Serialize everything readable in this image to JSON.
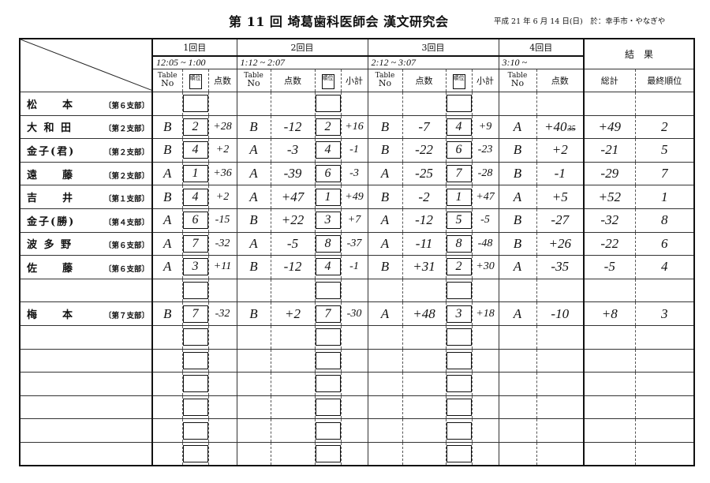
{
  "document": {
    "title": "第 11 回 埼葛歯科医師会 漢文研究会",
    "date_place": "平成 21 年 6 月 14 日(日)　於：幸手市・やなぎや"
  },
  "header": {
    "rounds": [
      "1回目",
      "2回目",
      "3回目",
      "4回目"
    ],
    "times": [
      "12:05 ~ 1:00",
      "1:12  ~  2:07",
      "2:12    ~ 3:07",
      "3:10 ~"
    ],
    "result": "結　果",
    "table_no": [
      "Table",
      "No"
    ],
    "rank_label": "順位",
    "score_label": "点数",
    "subtotal_label": "小計",
    "total_label": "総計",
    "final_rank_label": "最終順位"
  },
  "rows": [
    {
      "name": "松　　本",
      "branch": "〔第６支部〕",
      "r1": [
        "",
        "",
        ""
      ],
      "r2": [
        "",
        "",
        "",
        ""
      ],
      "r3": [
        "",
        "",
        "",
        ""
      ],
      "r4": [
        "",
        ""
      ],
      "total": "",
      "final": ""
    },
    {
      "name": "大 和 田",
      "branch": "〔第２支部〕",
      "r1": [
        "B",
        "2",
        "+28"
      ],
      "r2": [
        "B",
        "-12",
        "2",
        "+16"
      ],
      "r3": [
        "B",
        "-7",
        "4",
        "+9"
      ],
      "r4": [
        "A",
        "+40"
      ],
      "r4_struck": "35",
      "total": "+49",
      "final": "2"
    },
    {
      "name": "金子(君)",
      "branch": "〔第２支部〕",
      "r1": [
        "B",
        "4",
        "+2"
      ],
      "r2": [
        "A",
        "-3",
        "4",
        "-1"
      ],
      "r3": [
        "B",
        "-22",
        "6",
        "-23"
      ],
      "r4": [
        "B",
        "+2"
      ],
      "total": "-21",
      "final": "5"
    },
    {
      "name": "遠　　藤",
      "branch": "〔第２支部〕",
      "r1": [
        "A",
        "1",
        "+36"
      ],
      "r2": [
        "A",
        "-39",
        "6",
        "-3"
      ],
      "r3": [
        "A",
        "-25",
        "7",
        "-28"
      ],
      "r4": [
        "B",
        "-1"
      ],
      "total": "-29",
      "final": "7"
    },
    {
      "name": "吉　　井",
      "branch": "〔第１支部〕",
      "r1": [
        "B",
        "4",
        "+2"
      ],
      "r2": [
        "A",
        "+47",
        "1",
        "+49"
      ],
      "r3": [
        "B",
        "-2",
        "1",
        "+47"
      ],
      "r4": [
        "A",
        "+5"
      ],
      "total": "+52",
      "final": "1"
    },
    {
      "name": "金子(勝)",
      "branch": "〔第４支部〕",
      "r1": [
        "A",
        "6",
        "-15"
      ],
      "r2": [
        "B",
        "+22",
        "3",
        "+7"
      ],
      "r3": [
        "A",
        "-12",
        "5",
        "-5"
      ],
      "r4": [
        "B",
        "-27"
      ],
      "total": "-32",
      "final": "8"
    },
    {
      "name": "波 多 野",
      "branch": "〔第６支部〕",
      "r1": [
        "A",
        "7",
        "-32"
      ],
      "r2": [
        "A",
        "-5",
        "8",
        "-37"
      ],
      "r3": [
        "A",
        "-11",
        "8",
        "-48"
      ],
      "r4": [
        "B",
        "+26"
      ],
      "total": "-22",
      "final": "6"
    },
    {
      "name": "佐　　藤",
      "branch": "〔第６支部〕",
      "r1": [
        "A",
        "3",
        "+11"
      ],
      "r2": [
        "B",
        "-12",
        "4",
        "-1"
      ],
      "r3": [
        "B",
        "+31",
        "2",
        "+30"
      ],
      "r4": [
        "A",
        "-35"
      ],
      "total": "-5",
      "final": "4"
    },
    {
      "name": "",
      "branch": "",
      "r1": [
        "",
        "",
        ""
      ],
      "r2": [
        "",
        "",
        "",
        ""
      ],
      "r3": [
        "",
        "",
        "",
        ""
      ],
      "r4": [
        "",
        ""
      ],
      "total": "",
      "final": ""
    },
    {
      "name": "梅　　本",
      "branch": "〔第７支部〕",
      "r1": [
        "B",
        "7",
        "-32"
      ],
      "r2": [
        "B",
        "+2",
        "7",
        "-30"
      ],
      "r3": [
        "A",
        "+48",
        "3",
        "+18"
      ],
      "r4": [
        "A",
        "-10"
      ],
      "total": "+8",
      "final": "3"
    },
    {
      "name": "",
      "branch": "",
      "r1": [
        "",
        "",
        ""
      ],
      "r2": [
        "",
        "",
        "",
        ""
      ],
      "r3": [
        "",
        "",
        "",
        ""
      ],
      "r4": [
        "",
        ""
      ],
      "total": "",
      "final": ""
    },
    {
      "name": "",
      "branch": "",
      "r1": [
        "",
        "",
        ""
      ],
      "r2": [
        "",
        "",
        "",
        ""
      ],
      "r3": [
        "",
        "",
        "",
        ""
      ],
      "r4": [
        "",
        ""
      ],
      "total": "",
      "final": ""
    },
    {
      "name": "",
      "branch": "",
      "r1": [
        "",
        "",
        ""
      ],
      "r2": [
        "",
        "",
        "",
        ""
      ],
      "r3": [
        "",
        "",
        "",
        ""
      ],
      "r4": [
        "",
        ""
      ],
      "total": "",
      "final": ""
    },
    {
      "name": "",
      "branch": "",
      "r1": [
        "",
        "",
        ""
      ],
      "r2": [
        "",
        "",
        "",
        ""
      ],
      "r3": [
        "",
        "",
        "",
        ""
      ],
      "r4": [
        "",
        ""
      ],
      "total": "",
      "final": ""
    },
    {
      "name": "",
      "branch": "",
      "r1": [
        "",
        "",
        ""
      ],
      "r2": [
        "",
        "",
        "",
        ""
      ],
      "r3": [
        "",
        "",
        "",
        ""
      ],
      "r4": [
        "",
        ""
      ],
      "total": "",
      "final": ""
    },
    {
      "name": "",
      "branch": "",
      "r1": [
        "",
        "",
        ""
      ],
      "r2": [
        "",
        "",
        "",
        ""
      ],
      "r3": [
        "",
        "",
        "",
        ""
      ],
      "r4": [
        "",
        ""
      ],
      "total": "",
      "final": ""
    }
  ]
}
